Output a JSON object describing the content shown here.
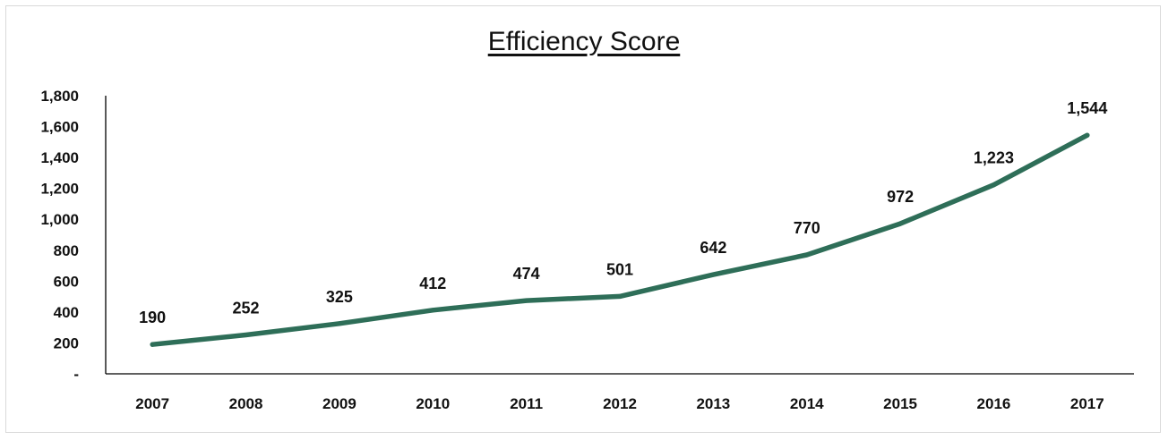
{
  "chart_data": {
    "type": "line",
    "title": "Efficiency Score",
    "categories": [
      "2007",
      "2008",
      "2009",
      "2010",
      "2011",
      "2012",
      "2013",
      "2014",
      "2015",
      "2016",
      "2017"
    ],
    "values": [
      190,
      252,
      325,
      412,
      474,
      501,
      642,
      770,
      972,
      1223,
      1544
    ],
    "data_labels": [
      "190",
      "252",
      "325",
      "412",
      "474",
      "501",
      "642",
      "770",
      "972",
      "1,223",
      "1,544"
    ],
    "y_ticks": [
      0,
      200,
      400,
      600,
      800,
      1000,
      1200,
      1400,
      1600,
      1800
    ],
    "y_tick_labels": [
      "-",
      "200",
      "400",
      "600",
      "800",
      "1,000",
      "1,200",
      "1,400",
      "1,600",
      "1,800"
    ],
    "ylim": [
      0,
      1800
    ],
    "xlabel": "",
    "ylabel": "",
    "grid": false,
    "legend": "none",
    "line_color": "#2e6e58"
  }
}
